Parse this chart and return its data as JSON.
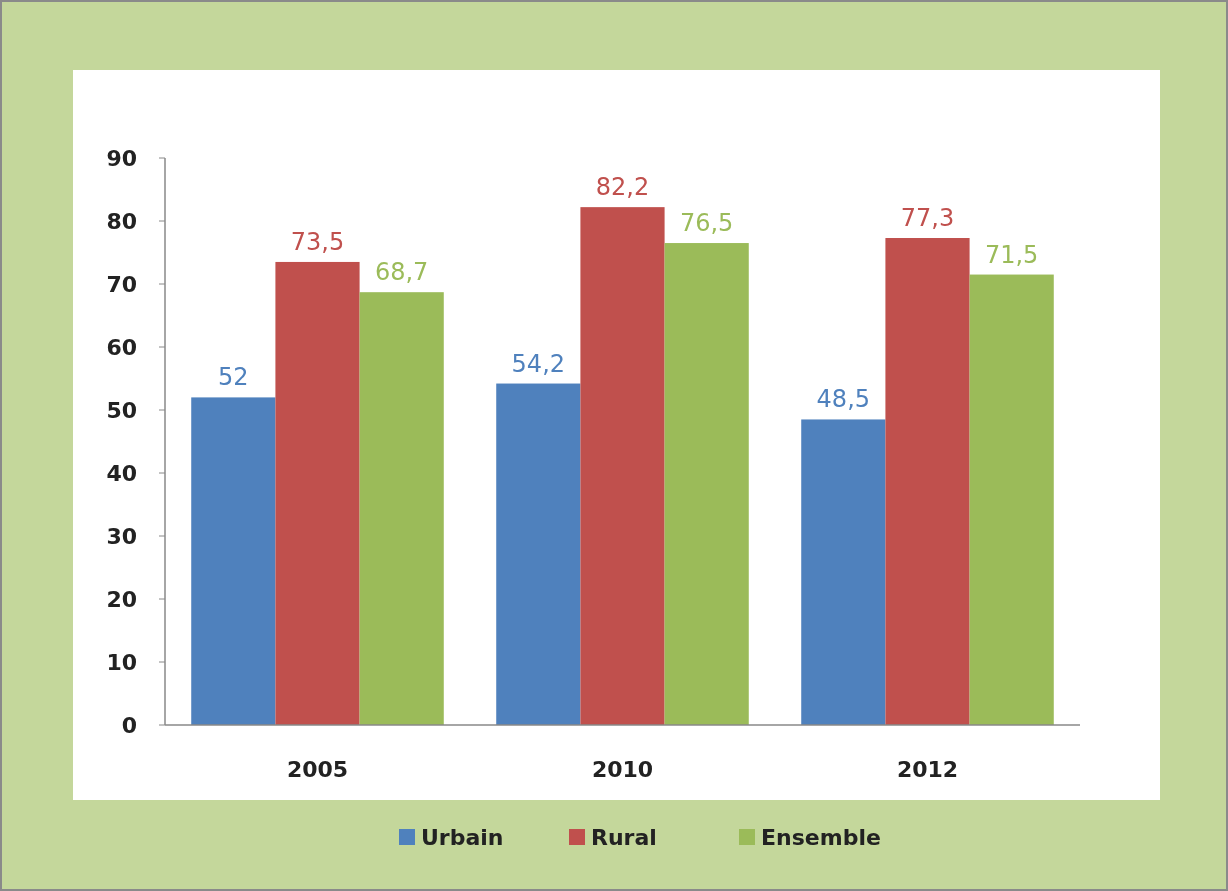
{
  "chart_data": {
    "type": "bar",
    "categories": [
      "2005",
      "2010",
      "2012"
    ],
    "series": [
      {
        "name": "Urbain",
        "color": "#4f81bd",
        "values": [
          52,
          54.2,
          48.5
        ],
        "value_labels": [
          "52",
          "54,2",
          "48,5"
        ]
      },
      {
        "name": "Rural",
        "color": "#c0504d",
        "values": [
          73.5,
          82.2,
          77.3
        ],
        "value_labels": [
          "73,5",
          "82,2",
          "77,3"
        ]
      },
      {
        "name": "Ensemble",
        "color": "#9bbb59",
        "values": [
          68.7,
          76.5,
          71.5
        ],
        "value_labels": [
          "68,7",
          "76,5",
          "71,5"
        ]
      }
    ],
    "ylim": [
      0,
      90
    ],
    "yticks": [
      0,
      10,
      20,
      30,
      40,
      50,
      60,
      70,
      80,
      90
    ],
    "grid": false,
    "legend": "bottom"
  }
}
